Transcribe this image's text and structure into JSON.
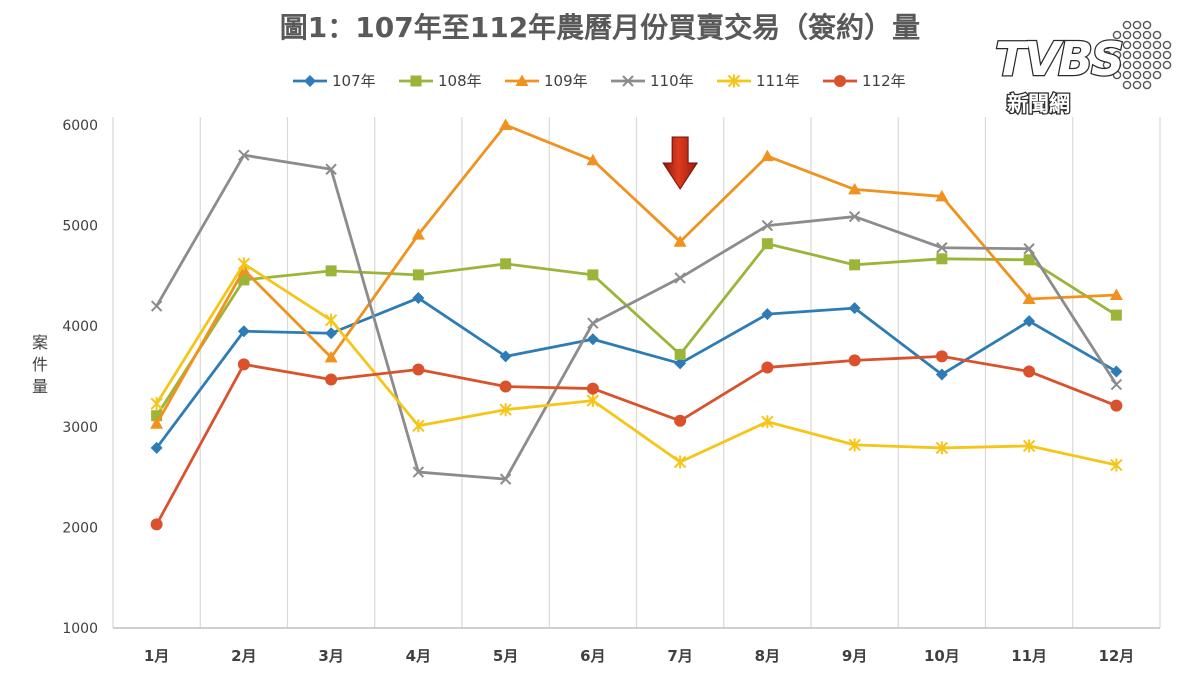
{
  "chart_data": {
    "type": "line",
    "title": "圖1：107年至112年農曆月份買賣交易（簽約）量",
    "ylabel": "案件量",
    "xlabel": "",
    "ylim": [
      1000,
      6000
    ],
    "yticks": [
      1000,
      2000,
      3000,
      4000,
      5000,
      6000
    ],
    "categories": [
      "1月",
      "2月",
      "3月",
      "4月",
      "5月",
      "6月",
      "7月",
      "8月",
      "9月",
      "10月",
      "11月",
      "12月"
    ],
    "grid": "vertical",
    "legend_position": "top",
    "highlight_arrow_category": "7月",
    "series": [
      {
        "name": "107年",
        "color": "#2E7CB5",
        "marker": "diamond",
        "values": [
          2790,
          3950,
          3930,
          4280,
          3700,
          3870,
          3630,
          4120,
          4180,
          3520,
          4050,
          3550
        ]
      },
      {
        "name": "108年",
        "color": "#9BB53A",
        "marker": "square",
        "values": [
          3110,
          4460,
          4550,
          4510,
          4620,
          4510,
          3720,
          4820,
          4610,
          4670,
          4660,
          4110
        ]
      },
      {
        "name": "109年",
        "color": "#F0921E",
        "marker": "triangle",
        "values": [
          3030,
          4560,
          3690,
          4910,
          6000,
          5650,
          4840,
          5690,
          5360,
          5290,
          4270,
          4310
        ]
      },
      {
        "name": "110年",
        "color": "#8C8C8C",
        "marker": "x",
        "values": [
          4200,
          5700,
          5560,
          2550,
          2480,
          4030,
          4480,
          5000,
          5090,
          4780,
          4770,
          3420
        ]
      },
      {
        "name": "111年",
        "color": "#F5C518",
        "marker": "star",
        "values": [
          3230,
          4620,
          4060,
          3010,
          3170,
          3260,
          2650,
          3050,
          2820,
          2790,
          2810,
          2620
        ]
      },
      {
        "name": "112年",
        "color": "#D9522B",
        "marker": "circle",
        "values": [
          2030,
          3620,
          3470,
          3570,
          3400,
          3380,
          3060,
          3590,
          3660,
          3700,
          3550,
          3210
        ]
      }
    ]
  },
  "logo": {
    "word": "TVBS",
    "sub": "新聞網"
  }
}
